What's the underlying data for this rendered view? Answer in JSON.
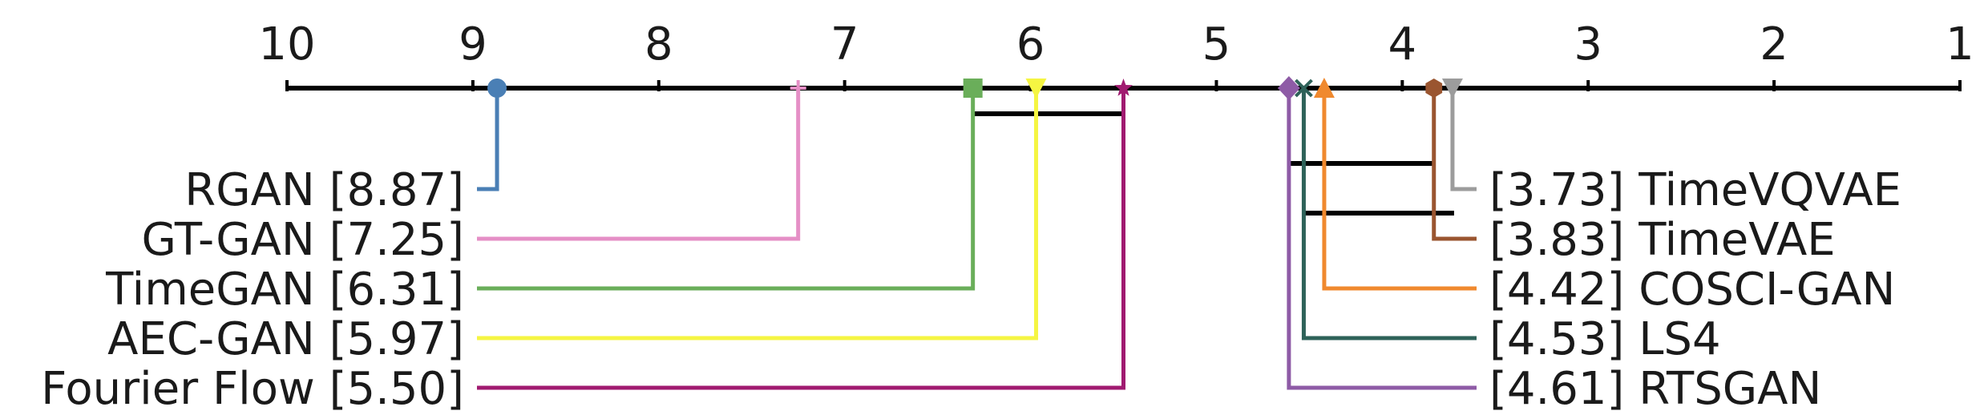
{
  "chart_data": {
    "type": "critical-difference",
    "axis": {
      "min": 1,
      "max": 10,
      "reversed": true,
      "ticks": [
        "10",
        "9",
        "8",
        "7",
        "6",
        "5",
        "4",
        "3",
        "2",
        "1"
      ]
    },
    "methods": [
      {
        "name": "RGAN",
        "rank": 8.87,
        "rank_label": "[8.87]",
        "color": "#4a7fb5",
        "marker": "circle"
      },
      {
        "name": "GT-GAN",
        "rank": 7.25,
        "rank_label": "[7.25]",
        "color": "#e58fc6",
        "marker": "plus"
      },
      {
        "name": "TimeGAN",
        "rank": 6.31,
        "rank_label": "[6.31]",
        "color": "#6aae5a",
        "marker": "square"
      },
      {
        "name": "AEC-GAN",
        "rank": 5.97,
        "rank_label": "[5.97]",
        "color": "#f5f542",
        "marker": "triangle-down"
      },
      {
        "name": "Fourier Flow",
        "rank": 5.5,
        "rank_label": "[5.50]",
        "color": "#a01a70",
        "marker": "star"
      },
      {
        "name": "RTSGAN",
        "rank": 4.61,
        "rank_label": "[4.61]",
        "color": "#8e5ba6",
        "marker": "diamond"
      },
      {
        "name": "LS4",
        "rank": 4.53,
        "rank_label": "[4.53]",
        "color": "#2e6259",
        "marker": "x"
      },
      {
        "name": "COSCI-GAN",
        "rank": 4.42,
        "rank_label": "[4.42]",
        "color": "#f0892e",
        "marker": "triangle-up"
      },
      {
        "name": "TimeVAE",
        "rank": 3.83,
        "rank_label": "[3.83]",
        "color": "#9a5530",
        "marker": "hexagon"
      },
      {
        "name": "TimeVQVAE",
        "rank": 3.73,
        "rank_label": "[3.73]",
        "color": "#9c9c9c",
        "marker": "triangle-down"
      }
    ],
    "left_order": [
      "RGAN",
      "GT-GAN",
      "TimeGAN",
      "AEC-GAN",
      "Fourier Flow"
    ],
    "right_order": [
      "TimeVQVAE",
      "TimeVAE",
      "COSCI-GAN",
      "LS4",
      "RTSGAN"
    ],
    "cliques": [
      {
        "from": 6.31,
        "to": 5.5
      },
      {
        "from": 4.61,
        "to": 3.83
      },
      {
        "from": 4.53,
        "to": 3.73
      }
    ]
  }
}
